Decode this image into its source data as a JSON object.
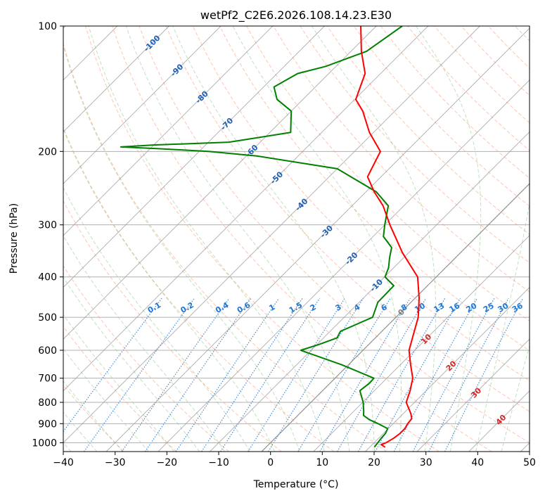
{
  "chart_data": {
    "type": "skew-t",
    "title": "wetPf2_C2E6.2026.108.14.23.E30",
    "xlabel": "Temperature (°C)",
    "ylabel": "Pressure (hPa)",
    "xlim": [
      -40,
      50
    ],
    "ylim": [
      1050,
      100
    ],
    "x_ticks": [
      -40,
      -30,
      -20,
      -10,
      0,
      10,
      20,
      30,
      40,
      50
    ],
    "y_ticks": [
      100,
      200,
      300,
      400,
      500,
      600,
      700,
      800,
      900,
      1000
    ],
    "temperature": {
      "name": "Temperature",
      "color": "#ff0000",
      "p": [
        1025,
        1010,
        1000,
        975,
        950,
        925,
        900,
        875,
        850,
        800,
        750,
        700,
        650,
        600,
        550,
        500,
        450,
        400,
        350,
        300,
        270,
        250,
        230,
        200,
        180,
        160,
        150,
        130,
        115,
        100
      ],
      "t": [
        23.0,
        21.7,
        22.3,
        22.9,
        23.2,
        23.2,
        22.8,
        22.6,
        21.4,
        18.4,
        16.9,
        15.0,
        12.0,
        8.9,
        6.7,
        4.3,
        0.8,
        -3.6,
        -11.2,
        -19.0,
        -24.0,
        -28.4,
        -32.6,
        -35.0,
        -40.8,
        -46.2,
        -49.8,
        -53.0,
        -58.0,
        -63.0
      ]
    },
    "dewpoint": {
      "name": "Dewpoint",
      "color": "#008000",
      "p": [
        1025,
        1000,
        975,
        950,
        925,
        900,
        880,
        860,
        840,
        800,
        750,
        720,
        700,
        650,
        600,
        580,
        560,
        540,
        500,
        460,
        420,
        400,
        380,
        360,
        340,
        320,
        300,
        270,
        250,
        220,
        205,
        200,
        197,
        195,
        193,
        190,
        180,
        160,
        150,
        140,
        130,
        125,
        115,
        100
      ],
      "t": [
        20.9,
        20.7,
        20.5,
        20.4,
        19.9,
        17.1,
        14.6,
        12.7,
        11.9,
        10.1,
        7.2,
        7.6,
        7.5,
        -1.3,
        -12.0,
        -9.5,
        -7.4,
        -8.0,
        -4.5,
        -6.4,
        -6.5,
        -9.9,
        -11.0,
        -12.7,
        -14.3,
        -18.0,
        -20.0,
        -23.0,
        -28.0,
        -40.0,
        -58.0,
        -68.0,
        -78.0,
        -86.0,
        -80.0,
        -66.0,
        -56.0,
        -60.0,
        -65.0,
        -68.0,
        -66.0,
        -62.0,
        -57.0,
        -55.0
      ]
    },
    "mixing_ratio_labels": [
      "0.1",
      "0.2",
      "0.4",
      "0.6",
      "1",
      "1.5",
      "2",
      "3",
      "4",
      "6",
      "8",
      "10",
      "13",
      "16",
      "20",
      "25",
      "30",
      "36"
    ],
    "mixing_ratio_values": [
      0.1,
      0.2,
      0.4,
      0.6,
      1,
      1.5,
      2,
      3,
      4,
      6,
      8,
      10,
      13,
      16,
      20,
      25,
      30,
      36
    ],
    "moist_adiabat_labels": [
      {
        "text": "-100",
        "t": -100
      },
      {
        "text": "-90",
        "t": -90
      },
      {
        "text": "-80",
        "t": -80
      },
      {
        "text": "-70",
        "t": -70
      },
      {
        "text": "-60",
        "t": -60
      },
      {
        "text": "-50",
        "t": -50
      },
      {
        "text": "-40",
        "t": -40
      },
      {
        "text": "-30",
        "t": -30
      },
      {
        "text": "-20",
        "t": -20
      },
      {
        "text": "-10",
        "t": -10
      },
      {
        "text": "0",
        "t": 0
      },
      {
        "text": "10",
        "t": 10
      },
      {
        "text": "20",
        "t": 20
      },
      {
        "text": "30",
        "t": 30
      },
      {
        "text": "40",
        "t": 40
      }
    ],
    "colors": {
      "isotherm": "#999999",
      "dry_adiabat": "#ff7f50",
      "moist_adiabat": "#2ca02c",
      "mixing_ratio": "#1f77d4",
      "label_cold": "#1f5fb4",
      "label_zero": "#7f7f7f",
      "label_warm": "#d62728"
    }
  }
}
